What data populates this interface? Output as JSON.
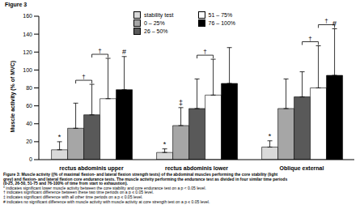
{
  "title": "Figure 3",
  "chart_data": {
    "type": "bar",
    "categories": [
      "rectus abdominis upper",
      "rectus abdominis lower",
      "Oblique external"
    ],
    "ylabel": "Muscle activity (% of MVC)",
    "ylim": [
      0,
      160
    ],
    "yticks": [
      0,
      20,
      40,
      60,
      80,
      100,
      120,
      140,
      160
    ],
    "legend": "top",
    "series": [
      {
        "name": "stability test",
        "color": "#d9d9d9",
        "values": [
          11,
          8,
          14
        ],
        "errors": [
          9,
          4,
          7
        ]
      },
      {
        "name": "0 – 25%",
        "color": "#a6a6a6",
        "values": [
          35,
          38,
          57
        ],
        "errors": [
          28,
          20,
          33
        ]
      },
      {
        "name": "26 – 50%",
        "color": "#595959",
        "values": [
          50,
          57,
          70
        ],
        "errors": [
          34,
          33,
          28
        ]
      },
      {
        "name": "51 – 75%",
        "color": "#ffffff",
        "values": [
          68,
          72,
          80
        ],
        "errors": [
          45,
          40,
          47
        ]
      },
      {
        "name": "76 – 100%",
        "color": "#000000",
        "values": [
          78,
          85,
          94
        ],
        "errors": [
          37,
          40,
          52
        ]
      }
    ],
    "annotations": [
      {
        "category": "rectus abdominis upper",
        "series": "stability test",
        "label": "*"
      },
      {
        "category": "rectus abdominis lower",
        "series": "stability test",
        "label": "*"
      },
      {
        "category": "Oblique external",
        "series": "stability test",
        "label": "*"
      },
      {
        "category": "rectus abdominis lower",
        "series": "0 – 25%",
        "label": "‡"
      },
      {
        "category": "rectus abdominis upper",
        "series": "76 – 100%",
        "label": "#"
      },
      {
        "category": "Oblique external",
        "series": "76 – 100%",
        "label": "#"
      }
    ],
    "brackets": [
      {
        "category": "rectus abdominis upper",
        "between": [
          "0 – 25%",
          "26 – 50%"
        ],
        "label": "†"
      },
      {
        "category": "rectus abdominis upper",
        "between": [
          "26 – 50%",
          "51 – 75%"
        ],
        "label": "†"
      },
      {
        "category": "rectus abdominis lower",
        "between": [
          "26 – 50%",
          "51 – 75%"
        ],
        "label": "†"
      },
      {
        "category": "Oblique external",
        "between": [
          "26 – 50%",
          "51 – 75%"
        ],
        "label": "†"
      },
      {
        "category": "Oblique external",
        "between": [
          "51 – 75%",
          "76 – 100%"
        ],
        "label": "†"
      }
    ]
  },
  "caption": [
    "Figure 3: Muscle activity ((% of maximal flexion- and lateral flexion strength tests) of the abdominal muscles performing the core stability (light",
    "grey) and flexion- and lateral flexion core endurance tests. The muscle activity performing the endurance test as divided in four similar time periods",
    "(0-25, 26-50, 51-75 and 76-100% of time from start to exhaustion).",
    "* indicates significant lower muscle activity between the core stability and core endurance test on a p < 0.05 level.",
    "† indicates significant difference between these two time periods on a p ≤ 0.05 level.",
    "‡ indicates significant difference with all other time periods on a p ≤ 0.05 level.",
    "# indicates no significant difference with muscle activity with muscle activity at core strength test on a p ≤ 0.05 level."
  ]
}
